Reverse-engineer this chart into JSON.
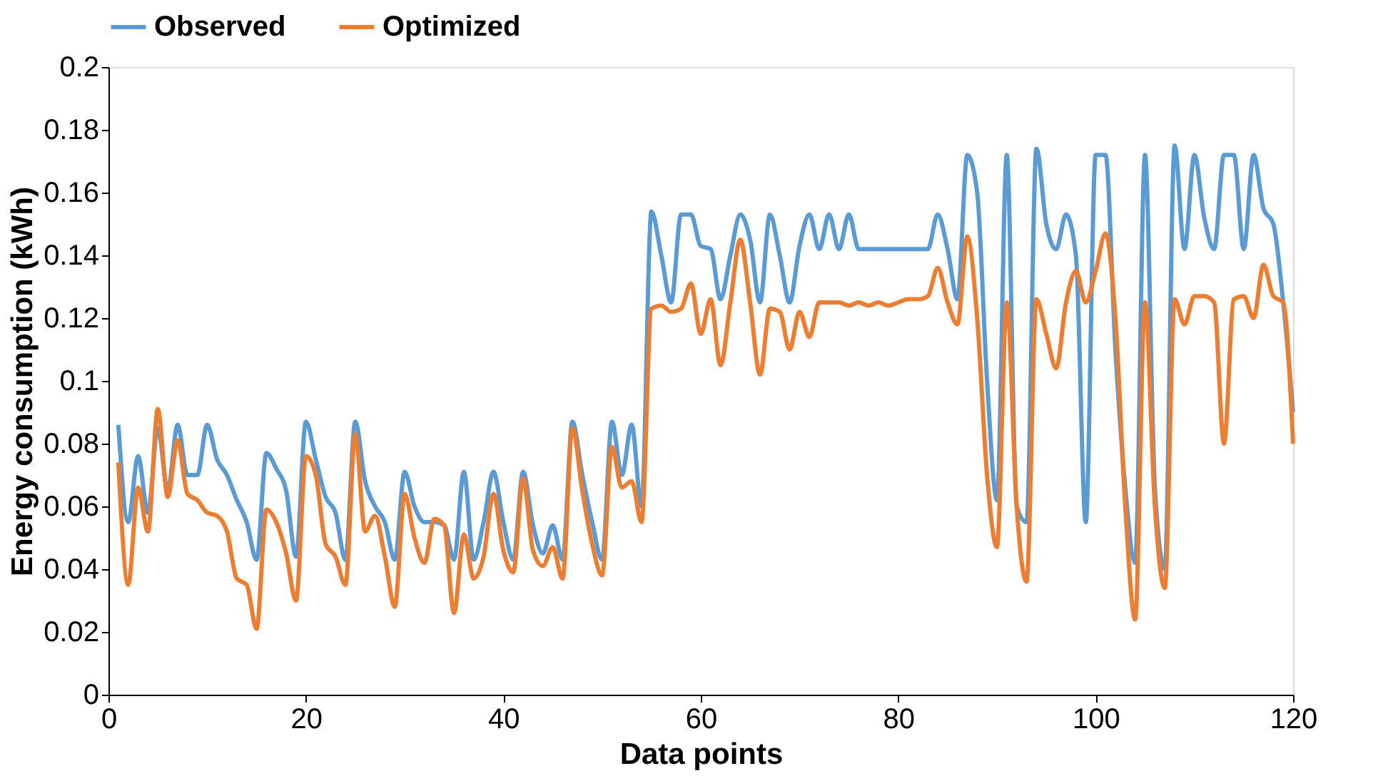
{
  "chart_data": {
    "type": "line",
    "xlabel": "Data points",
    "ylabel": "Energy consumption (kWh)",
    "x": [
      1,
      2,
      3,
      4,
      5,
      6,
      7,
      8,
      9,
      10,
      11,
      12,
      13,
      14,
      15,
      16,
      17,
      18,
      19,
      20,
      21,
      22,
      23,
      24,
      25,
      26,
      27,
      28,
      29,
      30,
      31,
      32,
      33,
      34,
      35,
      36,
      37,
      38,
      39,
      40,
      41,
      42,
      43,
      44,
      45,
      46,
      47,
      48,
      49,
      50,
      51,
      52,
      53,
      54,
      55,
      56,
      57,
      58,
      59,
      60,
      61,
      62,
      63,
      64,
      65,
      66,
      67,
      68,
      69,
      70,
      71,
      72,
      73,
      74,
      75,
      76,
      77,
      78,
      79,
      80,
      81,
      82,
      83,
      84,
      85,
      86,
      87,
      88,
      89,
      90,
      91,
      92,
      93,
      94,
      95,
      96,
      97,
      98,
      99,
      100,
      101,
      102,
      103,
      104,
      105,
      106,
      107,
      108,
      109,
      110,
      111,
      112,
      113,
      114,
      115,
      116,
      117,
      118,
      119,
      120
    ],
    "series": [
      {
        "name": "Observed",
        "color": "#5b9bd5",
        "values": [
          0.086,
          0.055,
          0.076,
          0.058,
          0.085,
          0.065,
          0.086,
          0.07,
          0.07,
          0.086,
          0.075,
          0.07,
          0.062,
          0.055,
          0.043,
          0.077,
          0.072,
          0.065,
          0.044,
          0.087,
          0.075,
          0.063,
          0.058,
          0.043,
          0.087,
          0.068,
          0.06,
          0.055,
          0.043,
          0.071,
          0.06,
          0.055,
          0.055,
          0.054,
          0.043,
          0.071,
          0.043,
          0.055,
          0.071,
          0.055,
          0.043,
          0.071,
          0.054,
          0.045,
          0.054,
          0.043,
          0.087,
          0.07,
          0.055,
          0.043,
          0.087,
          0.07,
          0.086,
          0.06,
          0.154,
          0.14,
          0.125,
          0.153,
          0.153,
          0.143,
          0.142,
          0.126,
          0.14,
          0.153,
          0.145,
          0.125,
          0.153,
          0.14,
          0.125,
          0.143,
          0.153,
          0.142,
          0.153,
          0.142,
          0.153,
          0.142,
          0.142,
          0.142,
          0.142,
          0.142,
          0.142,
          0.142,
          0.142,
          0.153,
          0.142,
          0.126,
          0.172,
          0.16,
          0.1,
          0.062,
          0.172,
          0.06,
          0.055,
          0.174,
          0.15,
          0.142,
          0.153,
          0.14,
          0.055,
          0.172,
          0.172,
          0.11,
          0.066,
          0.042,
          0.172,
          0.066,
          0.04,
          0.175,
          0.142,
          0.172,
          0.152,
          0.142,
          0.172,
          0.172,
          0.142,
          0.172,
          0.155,
          0.15,
          0.125,
          0.09
        ]
      },
      {
        "name": "Optimized",
        "color": "#ed7d31",
        "values": [
          0.074,
          0.035,
          0.066,
          0.052,
          0.091,
          0.063,
          0.081,
          0.064,
          0.062,
          0.058,
          0.057,
          0.052,
          0.037,
          0.035,
          0.021,
          0.059,
          0.055,
          0.045,
          0.03,
          0.076,
          0.07,
          0.048,
          0.044,
          0.035,
          0.083,
          0.052,
          0.057,
          0.044,
          0.028,
          0.064,
          0.05,
          0.042,
          0.056,
          0.054,
          0.026,
          0.051,
          0.037,
          0.044,
          0.064,
          0.046,
          0.039,
          0.069,
          0.046,
          0.041,
          0.047,
          0.037,
          0.085,
          0.065,
          0.048,
          0.038,
          0.079,
          0.066,
          0.068,
          0.055,
          0.123,
          0.124,
          0.122,
          0.123,
          0.131,
          0.115,
          0.126,
          0.105,
          0.125,
          0.145,
          0.125,
          0.102,
          0.123,
          0.122,
          0.11,
          0.122,
          0.114,
          0.125,
          0.125,
          0.125,
          0.124,
          0.125,
          0.124,
          0.125,
          0.124,
          0.125,
          0.126,
          0.126,
          0.127,
          0.136,
          0.125,
          0.118,
          0.146,
          0.12,
          0.07,
          0.047,
          0.125,
          0.06,
          0.036,
          0.126,
          0.115,
          0.104,
          0.125,
          0.135,
          0.125,
          0.135,
          0.147,
          0.12,
          0.06,
          0.024,
          0.125,
          0.06,
          0.034,
          0.126,
          0.118,
          0.127,
          0.127,
          0.125,
          0.08,
          0.126,
          0.127,
          0.12,
          0.137,
          0.127,
          0.125,
          0.08
        ]
      }
    ],
    "xlim": [
      0,
      120
    ],
    "xticks": [
      0,
      20,
      40,
      60,
      80,
      100,
      120
    ],
    "ylim": [
      0,
      0.2
    ],
    "yticks": [
      0,
      0.02,
      0.04,
      0.06,
      0.08,
      0.1,
      0.12,
      0.14,
      0.16,
      0.18,
      0.2
    ],
    "grid": false,
    "legend": "top",
    "marker": "none",
    "line_style": "solid"
  }
}
